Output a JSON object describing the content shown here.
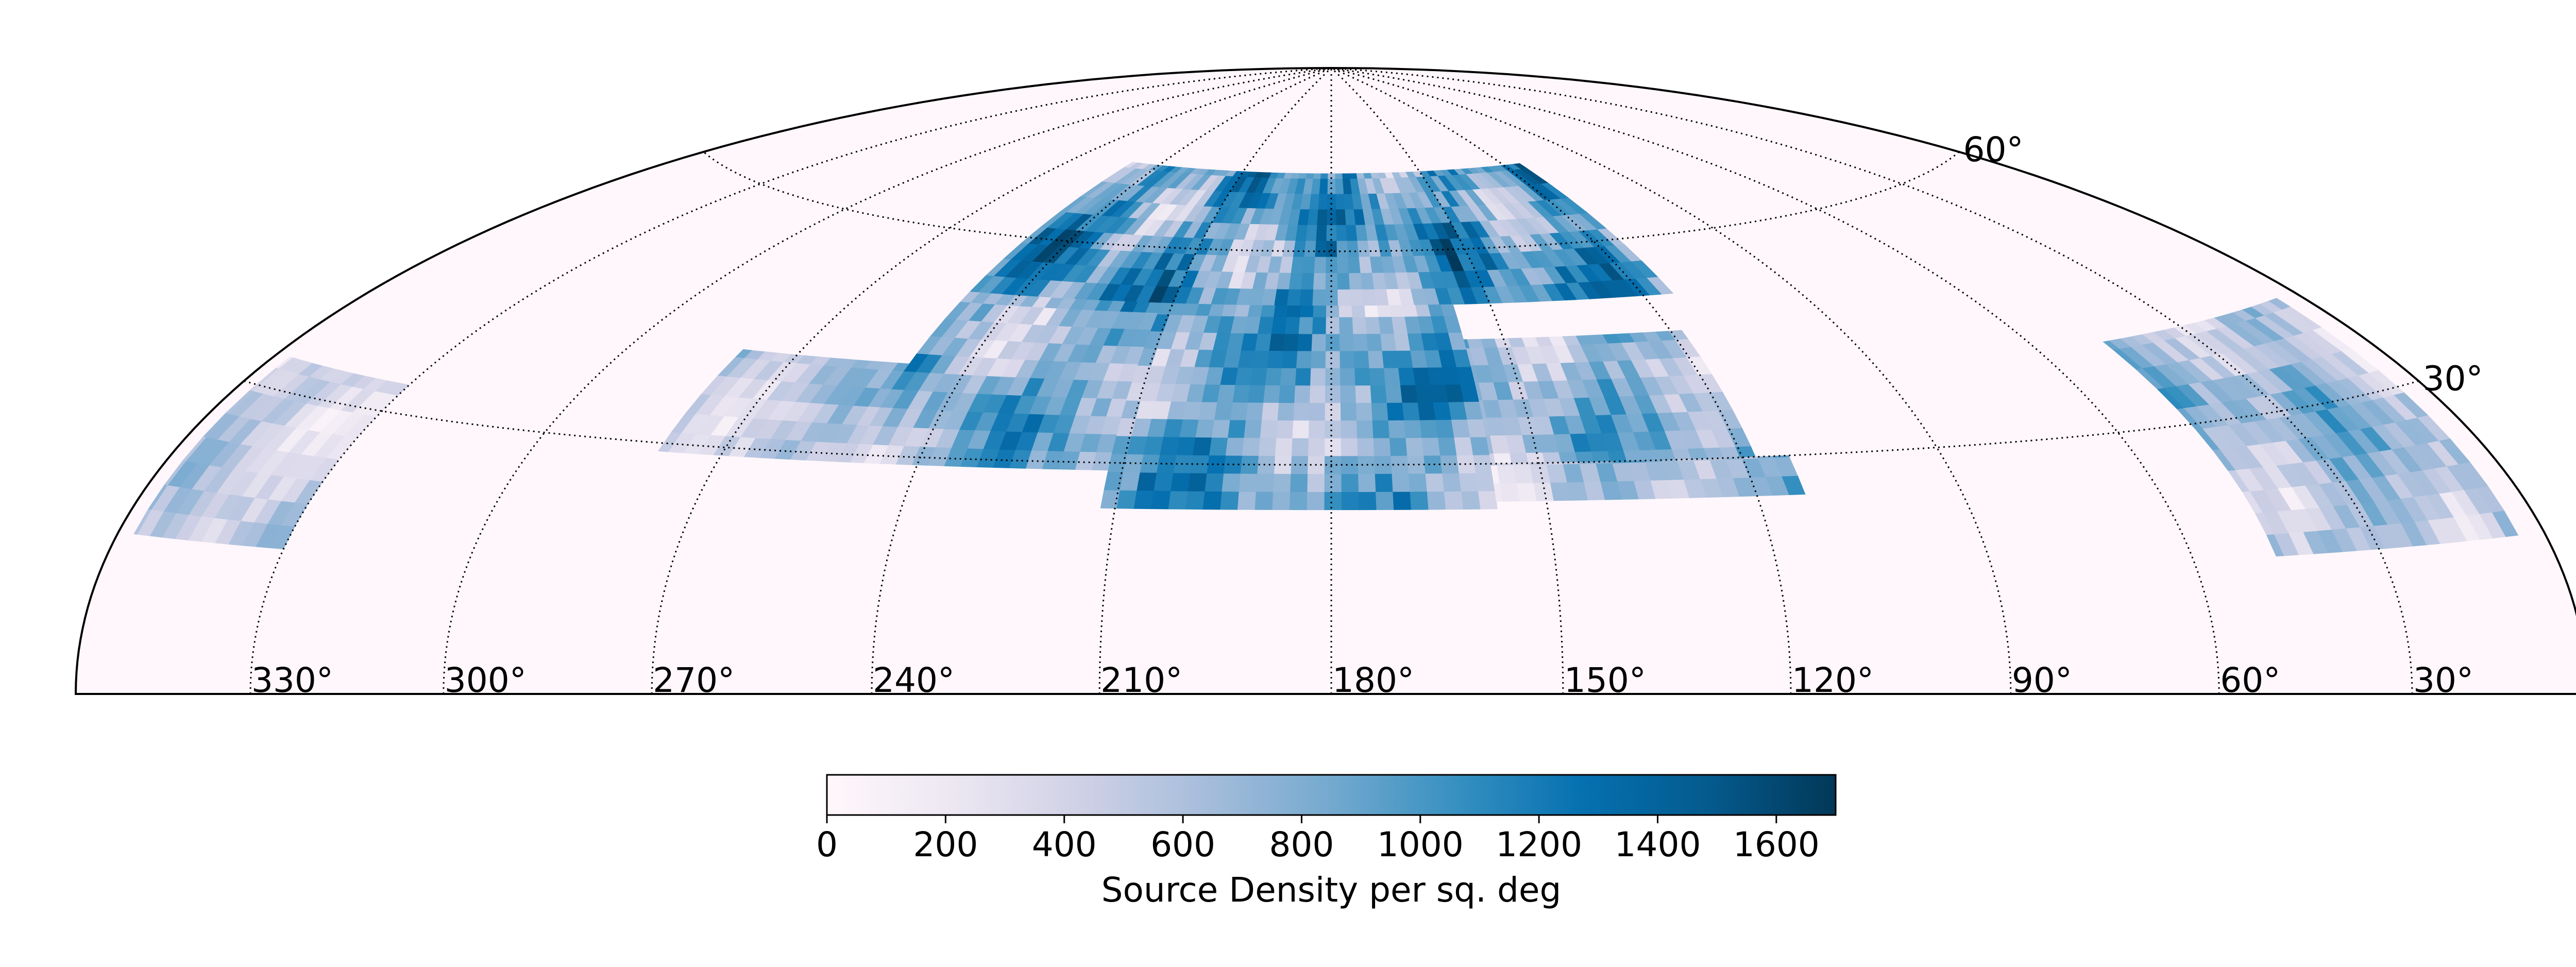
{
  "chart_data": {
    "type": "heatmap",
    "projection": "hammer-aitoff, northern hemisphere only",
    "title": "",
    "colormap": "PuBu",
    "colormap_stops": [
      "#fff7fb",
      "#ece7f2",
      "#d0d1e6",
      "#a6bddb",
      "#74a9cf",
      "#3690c0",
      "#0570b0",
      "#045a8d",
      "#023858"
    ],
    "background_color": "#fff7fb",
    "grid": true,
    "grid_style": "dotted",
    "ra_ticks": [
      {
        "value": 330,
        "label": "330°"
      },
      {
        "value": 300,
        "label": "300°"
      },
      {
        "value": 270,
        "label": "270°"
      },
      {
        "value": 240,
        "label": "240°"
      },
      {
        "value": 210,
        "label": "210°"
      },
      {
        "value": 180,
        "label": "180°"
      },
      {
        "value": 150,
        "label": "150°"
      },
      {
        "value": 120,
        "label": "120°"
      },
      {
        "value": 90,
        "label": "90°"
      },
      {
        "value": 60,
        "label": "60°"
      },
      {
        "value": 30,
        "label": "30°"
      }
    ],
    "dec_ticks": [
      {
        "value": 60,
        "label": "60°"
      },
      {
        "value": 30,
        "label": "30°"
      }
    ],
    "footprint_regions": [
      {
        "ra_range": [
          114,
          250
        ],
        "dec_range": [
          52,
          72
        ],
        "mean_density": 1150
      },
      {
        "ra_range": [
          240,
          280
        ],
        "dec_range": [
          29,
          42
        ],
        "mean_density": 650
      },
      {
        "ra_range": [
          200,
          250
        ],
        "dec_range": [
          29,
          52
        ],
        "mean_density": 950
      },
      {
        "ra_range": [
          118,
          160
        ],
        "dec_range": [
          29,
          47
        ],
        "mean_density": 900
      },
      {
        "ra_range": [
          157,
          212
        ],
        "dec_range": [
          24,
          52
        ],
        "mean_density": 1050
      },
      {
        "ra_range": [
          113,
          157
        ],
        "dec_range": [
          25,
          30
        ],
        "mean_density": 750
      },
      {
        "ra_range": [
          330,
          357
        ],
        "dec_range": [
          15,
          33
        ],
        "mean_density": 550
      },
      {
        "ra_range": [
          5,
          47
        ],
        "dec_range": [
          15,
          40
        ],
        "mean_density": 800
      }
    ],
    "colorbar": {
      "label": "Source Density per sq. deg",
      "range": [
        0,
        1700
      ],
      "tick_values": [
        0,
        200,
        400,
        600,
        800,
        1000,
        1200,
        1400,
        1600
      ],
      "tick_labels": [
        "0",
        "200",
        "400",
        "600",
        "800",
        "1000",
        "1200",
        "1400",
        "1600"
      ]
    }
  }
}
